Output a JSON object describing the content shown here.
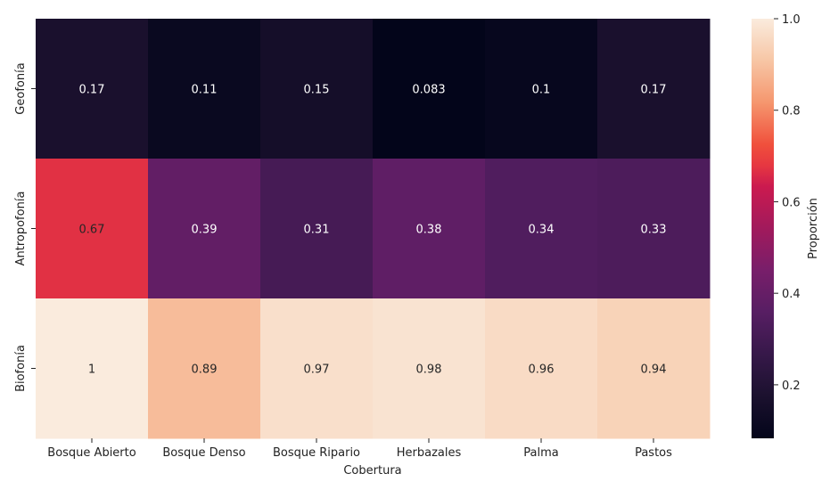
{
  "chart_data": {
    "type": "heatmap",
    "xlabel": "Cobertura",
    "ylabel": "",
    "x_categories": [
      "Bosque Abierto",
      "Bosque Denso",
      "Bosque Ripario",
      "Herbazales",
      "Palma",
      "Pastos"
    ],
    "y_categories": [
      "Geofonía",
      "Antropofonía",
      "Biofonía"
    ],
    "values": [
      [
        0.17,
        0.11,
        0.15,
        0.083,
        0.1,
        0.17
      ],
      [
        0.67,
        0.39,
        0.31,
        0.38,
        0.34,
        0.33
      ],
      [
        1,
        0.89,
        0.97,
        0.98,
        0.96,
        0.94
      ]
    ],
    "value_labels": [
      [
        "0.17",
        "0.11",
        "0.15",
        "0.083",
        "0.1",
        "0.17"
      ],
      [
        "0.67",
        "0.39",
        "0.31",
        "0.38",
        "0.34",
        "0.33"
      ],
      [
        "1",
        "0.89",
        "0.97",
        "0.98",
        "0.96",
        "0.94"
      ]
    ],
    "colorbar": {
      "label": "Proporción",
      "range": [
        0.083,
        1.0
      ],
      "ticks": [
        0.2,
        0.4,
        0.6,
        0.8,
        1.0
      ],
      "tick_labels": [
        "0.2",
        "0.4",
        "0.6",
        "0.8",
        "1.0"
      ]
    },
    "colormap": "rocket",
    "grid": false
  }
}
